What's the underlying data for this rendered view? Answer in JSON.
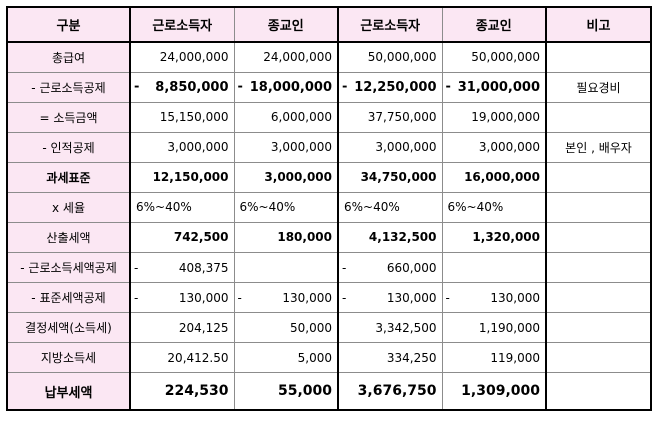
{
  "headers": [
    "구분",
    "근로소득자",
    "종교인",
    "근로소득자",
    "종교인",
    "비고"
  ],
  "rows": [
    {
      "label": "총급여",
      "sign": [
        "",
        "",
        "",
        ""
      ],
      "values": [
        "24,000,000",
        "24,000,000",
        "50,000,000",
        "50,000,000"
      ],
      "note": ""
    },
    {
      "label": "- 근로소득공제",
      "sign": [
        "-",
        "-",
        "-",
        "-"
      ],
      "values": [
        "8,850,000",
        "18,000,000",
        "12,250,000",
        "31,000,000"
      ],
      "note": "필요경비"
    },
    {
      "label": "= 소득금액",
      "sign": [
        "",
        "",
        "",
        ""
      ],
      "values": [
        "15,150,000",
        "6,000,000",
        "37,750,000",
        "19,000,000"
      ],
      "note": ""
    },
    {
      "label": "- 인적공제",
      "sign": [
        "",
        "",
        "",
        ""
      ],
      "values": [
        "3,000,000",
        "3,000,000",
        "3,000,000",
        "3,000,000"
      ],
      "note": "본인 , 배우자"
    },
    {
      "label": "과세표준",
      "sign": [
        "",
        "",
        "",
        ""
      ],
      "values": [
        "12,150,000",
        "3,000,000",
        "34,750,000",
        "16,000,000"
      ],
      "note": ""
    },
    {
      "label": "x 세율",
      "sign": [
        "",
        "",
        "",
        ""
      ],
      "values": [
        "6%~40%",
        "6%~40%",
        "6%~40%",
        "6%~40%"
      ],
      "note": ""
    },
    {
      "label": "산출세액",
      "sign": [
        "",
        "",
        "",
        ""
      ],
      "values": [
        "742,500",
        "180,000",
        "4,132,500",
        "1,320,000"
      ],
      "note": ""
    },
    {
      "label": "- 근로소득세액공제",
      "sign": [
        "-",
        "",
        "-",
        ""
      ],
      "values": [
        "408,375",
        "",
        "660,000",
        ""
      ],
      "note": ""
    },
    {
      "label": "- 표준세액공제",
      "sign": [
        "-",
        "-",
        "-",
        "-"
      ],
      "values": [
        "130,000",
        "130,000",
        "130,000",
        "130,000"
      ],
      "note": ""
    },
    {
      "label": "결정세액(소득세)",
      "sign": [
        "",
        "",
        "",
        ""
      ],
      "values": [
        "204,125",
        "50,000",
        "3,342,500",
        "1,190,000"
      ],
      "note": ""
    },
    {
      "label": "지방소득세",
      "sign": [
        "",
        "",
        "",
        ""
      ],
      "values": [
        "20,412.50",
        "5,000",
        "334,250",
        "119,000"
      ],
      "note": ""
    },
    {
      "label": "납부세액",
      "sign": [
        "",
        "",
        "",
        ""
      ],
      "values": [
        "224,530",
        "55,000",
        "3,676,750",
        "1,309,000"
      ],
      "note": ""
    }
  ]
}
